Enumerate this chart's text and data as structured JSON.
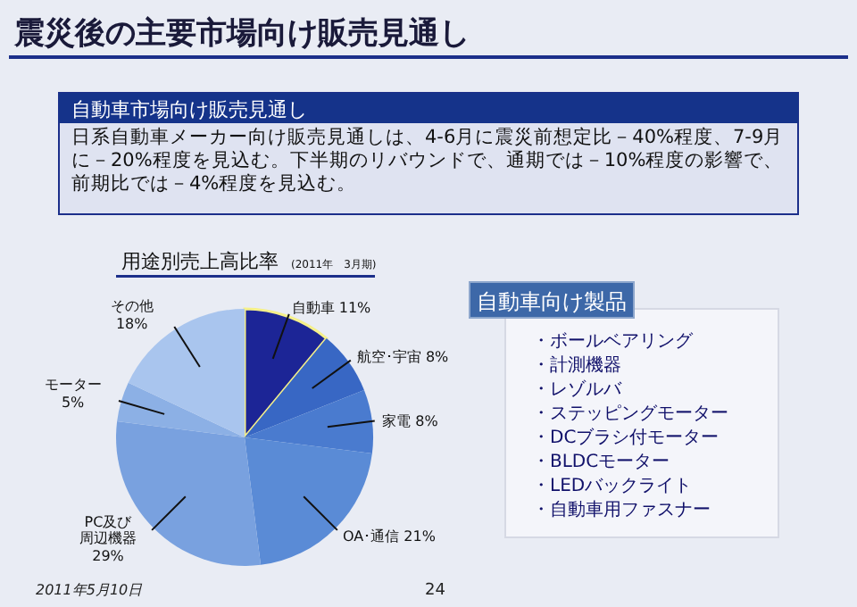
{
  "chart_data": [
    {
      "type": "other",
      "title": "震災後の主要市場向け販売見通し",
      "subtitle": "自動車市場向け販売見通し",
      "annotations": [
        "日系自動車メーカー向け販売見通しは、4-6月に震災前想定比－40%程度、7-9月に－20%程度を見込む。下半期のリバウンドで、通期では－10%程度の影響で、前期比では－4%程度を見込む。",
        "2011年5月10日",
        "24"
      ]
    },
    {
      "type": "pie",
      "title": "用途別売上高比率",
      "subtitle": "(2011年　3月期)",
      "categories": [
        "自動車",
        "航空･宇宙",
        "家電",
        "OA･通信",
        "PC及び周辺機器",
        "モーター",
        "その他"
      ],
      "values": [
        11,
        8,
        8,
        21,
        29,
        5,
        18
      ],
      "value_labels": [
        "11%",
        "8%",
        "8%",
        "21%",
        "29%",
        "5%",
        "18%"
      ],
      "colors": [
        "#1c2596",
        "#3867c4",
        "#4a7bcf",
        "#5a8bd6",
        "#79a1df",
        "#8cb0e5",
        "#a9c5ee"
      ]
    },
    {
      "type": "other",
      "title": "自動車向け製品",
      "annotations": [
        "・ボールベアリング",
        "・計測機器",
        "・レゾルバ",
        "・ステッピングモーター",
        "・DCブラシ付モーター",
        "・BLDCモーター",
        "・LEDバックライト",
        "・自動車用ファスナー"
      ]
    }
  ]
}
